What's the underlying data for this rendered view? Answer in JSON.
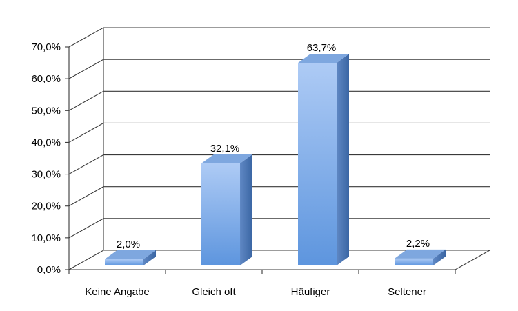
{
  "chart_data": {
    "type": "bar",
    "categories": [
      "Keine Angabe",
      "Gleich oft",
      "Häufiger",
      "Seltener"
    ],
    "values": [
      2.0,
      32.1,
      63.7,
      2.2
    ],
    "data_labels": [
      "2,0%",
      "32,1%",
      "63,7%",
      "2,2%"
    ],
    "ylim": [
      0,
      70
    ],
    "yticks": [
      0,
      10,
      20,
      30,
      40,
      50,
      60,
      70
    ],
    "ytick_labels": [
      "0,0%",
      "10,0%",
      "20,0%",
      "30,0%",
      "40,0%",
      "50,0%",
      "60,0%",
      "70,0%"
    ],
    "grid": true,
    "colors": {
      "bar_front_top": "#aecbf5",
      "bar_front_bottom": "#5d95de",
      "bar_side": "#3d6aa8",
      "bar_top": "#7ea7df",
      "grid": "#3a3a3a"
    }
  }
}
